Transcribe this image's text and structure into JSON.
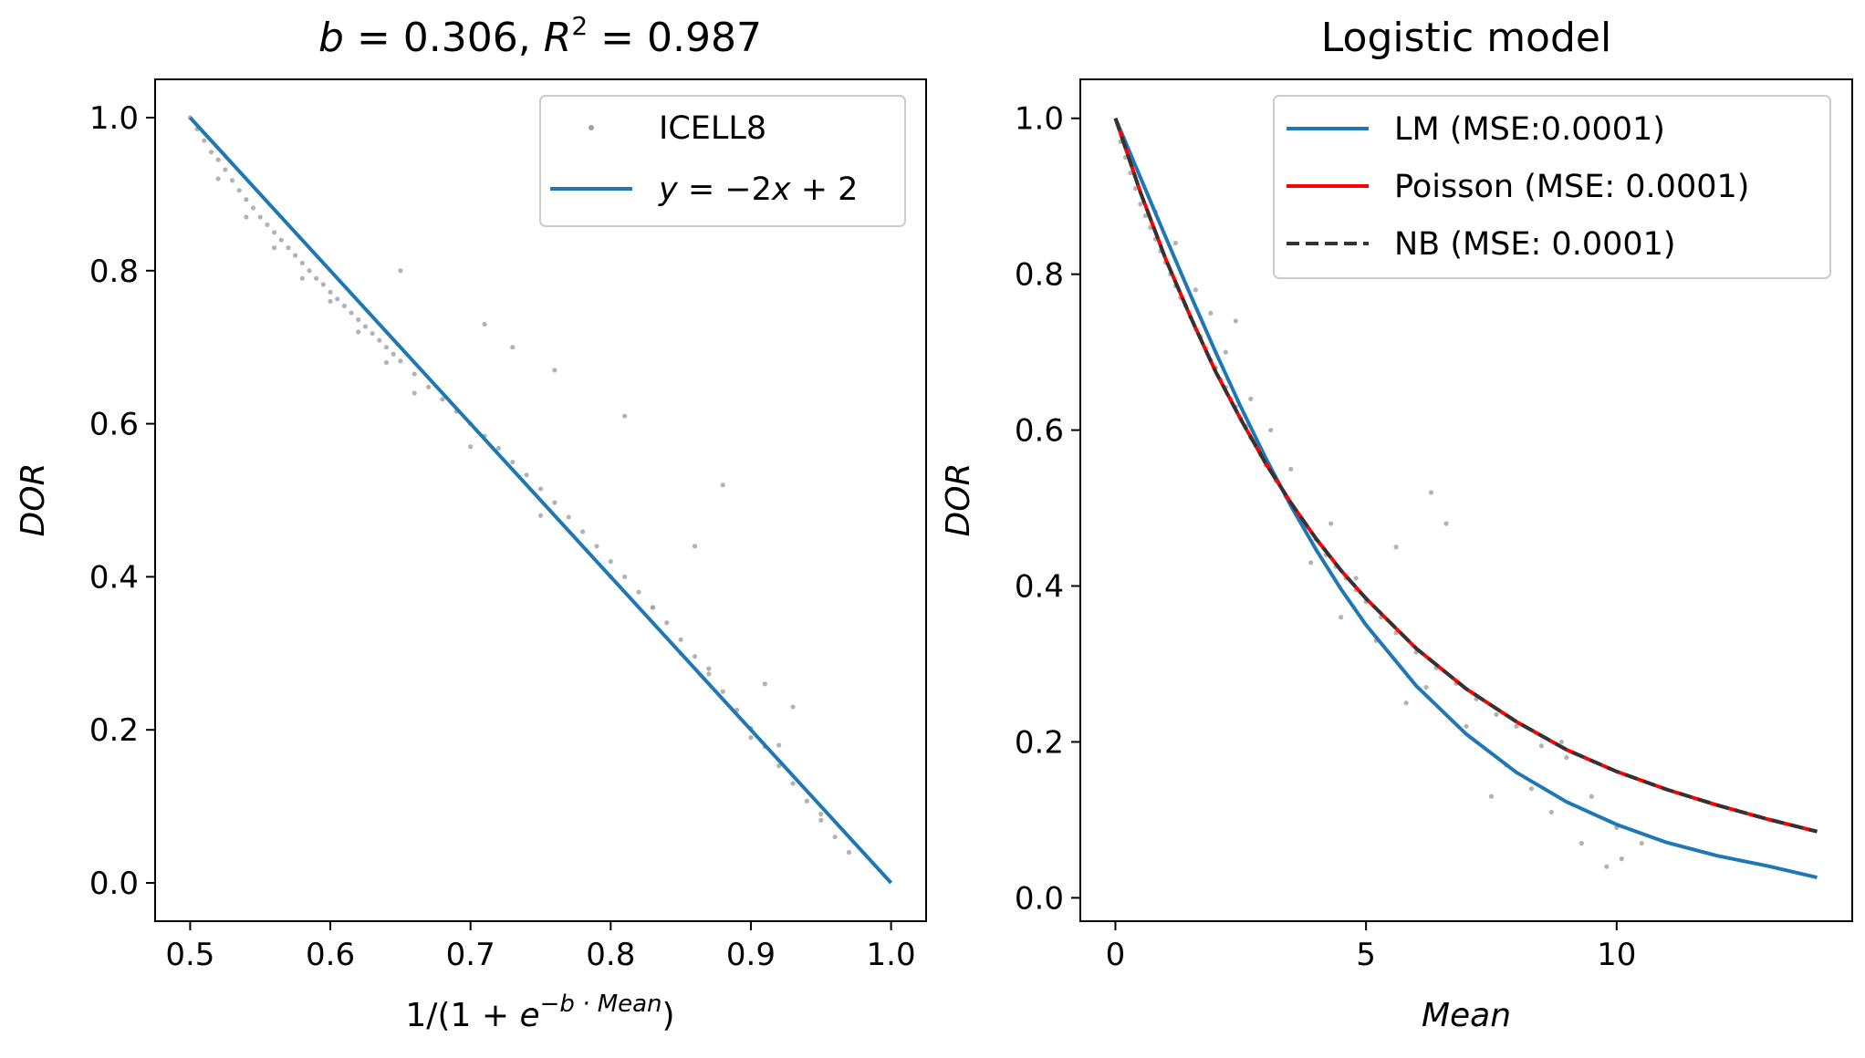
{
  "chart_data": [
    {
      "type": "scatter",
      "title_parts": [
        "b",
        " = 0.306,  ",
        "R",
        "2",
        " = 0.987"
      ],
      "xlabel_parts": [
        "1/(1 + ",
        "e",
        "−b · Mean",
        ")"
      ],
      "ylabel": "DOR",
      "xlim": [
        0.475,
        1.025
      ],
      "ylim": [
        -0.05,
        1.05
      ],
      "xticks": [
        0.5,
        0.6,
        0.7,
        0.8,
        0.9,
        1.0
      ],
      "xtick_labels": [
        "0.5",
        "0.6",
        "0.7",
        "0.8",
        "0.9",
        "1.0"
      ],
      "yticks": [
        0.0,
        0.2,
        0.4,
        0.6,
        0.8,
        1.0
      ],
      "ytick_labels": [
        "0.0",
        "0.2",
        "0.4",
        "0.6",
        "0.8",
        "1.0"
      ],
      "legend_position": "top-right",
      "b": 0.306,
      "colors": {
        "scatter": "#a0a0a0",
        "line": "#1f77b4"
      },
      "series": [
        {
          "name": "ICELL8",
          "kind": "scatter",
          "points": [
            [
              0.5,
              1.0
            ],
            [
              0.505,
              0.985
            ],
            [
              0.51,
              0.97
            ],
            [
              0.515,
              0.955
            ],
            [
              0.52,
              0.945
            ],
            [
              0.525,
              0.932
            ],
            [
              0.53,
              0.918
            ],
            [
              0.535,
              0.905
            ],
            [
              0.54,
              0.893
            ],
            [
              0.545,
              0.882
            ],
            [
              0.55,
              0.87
            ],
            [
              0.555,
              0.86
            ],
            [
              0.56,
              0.85
            ],
            [
              0.565,
              0.84
            ],
            [
              0.57,
              0.83
            ],
            [
              0.575,
              0.82
            ],
            [
              0.58,
              0.81
            ],
            [
              0.585,
              0.8
            ],
            [
              0.59,
              0.79
            ],
            [
              0.595,
              0.782
            ],
            [
              0.6,
              0.772
            ],
            [
              0.605,
              0.763
            ],
            [
              0.61,
              0.754
            ],
            [
              0.615,
              0.745
            ],
            [
              0.62,
              0.736
            ],
            [
              0.625,
              0.727
            ],
            [
              0.63,
              0.718
            ],
            [
              0.635,
              0.709
            ],
            [
              0.64,
              0.7
            ],
            [
              0.645,
              0.691
            ],
            [
              0.65,
              0.682
            ],
            [
              0.66,
              0.665
            ],
            [
              0.67,
              0.648
            ],
            [
              0.68,
              0.632
            ],
            [
              0.69,
              0.616
            ],
            [
              0.7,
              0.6
            ],
            [
              0.71,
              0.584
            ],
            [
              0.72,
              0.568
            ],
            [
              0.73,
              0.55
            ],
            [
              0.74,
              0.533
            ],
            [
              0.75,
              0.515
            ],
            [
              0.76,
              0.497
            ],
            [
              0.77,
              0.478
            ],
            [
              0.78,
              0.459
            ],
            [
              0.79,
              0.44
            ],
            [
              0.8,
              0.42
            ],
            [
              0.81,
              0.4
            ],
            [
              0.82,
              0.38
            ],
            [
              0.83,
              0.36
            ],
            [
              0.84,
              0.34
            ],
            [
              0.85,
              0.318
            ],
            [
              0.86,
              0.296
            ],
            [
              0.87,
              0.273
            ],
            [
              0.88,
              0.25
            ],
            [
              0.89,
              0.226
            ],
            [
              0.9,
              0.202
            ],
            [
              0.91,
              0.178
            ],
            [
              0.92,
              0.153
            ],
            [
              0.93,
              0.13
            ],
            [
              0.94,
              0.107
            ],
            [
              0.95,
              0.082
            ],
            [
              0.96,
              0.06
            ],
            [
              0.97,
              0.04
            ],
            [
              0.52,
              0.92
            ],
            [
              0.54,
              0.87
            ],
            [
              0.56,
              0.83
            ],
            [
              0.58,
              0.79
            ],
            [
              0.6,
              0.76
            ],
            [
              0.62,
              0.72
            ],
            [
              0.64,
              0.68
            ],
            [
              0.66,
              0.64
            ],
            [
              0.7,
              0.57
            ],
            [
              0.75,
              0.48
            ],
            [
              0.8,
              0.4
            ],
            [
              0.85,
              0.3
            ],
            [
              0.9,
              0.19
            ],
            [
              0.65,
              0.8
            ],
            [
              0.71,
              0.73
            ],
            [
              0.73,
              0.7
            ],
            [
              0.76,
              0.67
            ],
            [
              0.81,
              0.61
            ],
            [
              0.88,
              0.52
            ],
            [
              0.86,
              0.44
            ],
            [
              0.91,
              0.26
            ],
            [
              0.93,
              0.23
            ],
            [
              0.95,
              0.09
            ],
            [
              0.83,
              0.36
            ],
            [
              0.87,
              0.28
            ],
            [
              0.92,
              0.18
            ]
          ]
        },
        {
          "name_parts": [
            "y",
            " = −2",
            "x",
            " + 2"
          ],
          "kind": "line",
          "x": [
            0.5,
            1.0
          ],
          "y": [
            1.0,
            0.0
          ]
        }
      ]
    },
    {
      "type": "line",
      "title": "Logistic model",
      "xlabel": "Mean",
      "ylabel": "DOR",
      "xlim": [
        -0.7,
        14.7
      ],
      "ylim": [
        -0.03,
        1.05
      ],
      "xticks": [
        0,
        5,
        10
      ],
      "xtick_labels": [
        "0",
        "5",
        "10"
      ],
      "yticks": [
        0.0,
        0.2,
        0.4,
        0.6,
        0.8,
        1.0
      ],
      "ytick_labels": [
        "0.0",
        "0.2",
        "0.4",
        "0.6",
        "0.8",
        "1.0"
      ],
      "legend_position": "top-right",
      "colors": {
        "scatter": "#a0a0a0",
        "lm": "#1f77b4",
        "poisson": "#ff0000",
        "nb": "#333333"
      },
      "series": [
        {
          "name": "LM (MSE:0.0001)",
          "kind": "line",
          "x": [
            0,
            0.5,
            1,
            1.5,
            2,
            2.5,
            3,
            3.5,
            4,
            4.5,
            5,
            6,
            7,
            8,
            9,
            10,
            11,
            12,
            13,
            14
          ],
          "y": [
            1.0,
            0.924,
            0.848,
            0.773,
            0.7,
            0.63,
            0.564,
            0.503,
            0.447,
            0.396,
            0.35,
            0.272,
            0.21,
            0.161,
            0.123,
            0.094,
            0.071,
            0.054,
            0.041,
            0.026
          ]
        },
        {
          "name": "Poisson (MSE: 0.0001)",
          "kind": "line",
          "x": [
            0,
            0.5,
            1,
            1.5,
            2,
            2.5,
            3,
            3.5,
            4,
            4.5,
            5,
            6,
            7,
            8,
            9,
            10,
            11,
            12,
            13,
            14
          ],
          "y": [
            1.0,
            0.905,
            0.82,
            0.745,
            0.675,
            0.614,
            0.557,
            0.507,
            0.461,
            0.42,
            0.384,
            0.32,
            0.268,
            0.226,
            0.19,
            0.162,
            0.139,
            0.119,
            0.101,
            0.085
          ]
        },
        {
          "name": "NB (MSE: 0.0001)",
          "kind": "line",
          "x": [
            0,
            0.5,
            1,
            1.5,
            2,
            2.5,
            3,
            3.5,
            4,
            4.5,
            5,
            6,
            7,
            8,
            9,
            10,
            11,
            12,
            13,
            14
          ],
          "y": [
            1.0,
            0.905,
            0.82,
            0.745,
            0.675,
            0.614,
            0.557,
            0.507,
            0.461,
            0.42,
            0.384,
            0.32,
            0.268,
            0.226,
            0.19,
            0.162,
            0.139,
            0.119,
            0.101,
            0.085
          ]
        },
        {
          "kind": "scatter",
          "points": [
            [
              0.1,
              0.97
            ],
            [
              0.2,
              0.95
            ],
            [
              0.3,
              0.93
            ],
            [
              0.4,
              0.91
            ],
            [
              0.5,
              0.89
            ],
            [
              0.6,
              0.875
            ],
            [
              0.7,
              0.86
            ],
            [
              0.8,
              0.845
            ],
            [
              0.9,
              0.83
            ],
            [
              1.0,
              0.815
            ],
            [
              1.1,
              0.8
            ],
            [
              1.2,
              0.785
            ],
            [
              1.3,
              0.77
            ],
            [
              1.4,
              0.76
            ],
            [
              1.5,
              0.745
            ],
            [
              1.6,
              0.73
            ],
            [
              1.7,
              0.72
            ],
            [
              1.8,
              0.705
            ],
            [
              1.9,
              0.69
            ],
            [
              2.0,
              0.68
            ],
            [
              2.1,
              0.665
            ],
            [
              2.2,
              0.655
            ],
            [
              2.3,
              0.64
            ],
            [
              2.4,
              0.63
            ],
            [
              2.5,
              0.615
            ],
            [
              2.6,
              0.605
            ],
            [
              2.7,
              0.59
            ],
            [
              2.8,
              0.58
            ],
            [
              2.9,
              0.568
            ],
            [
              3.0,
              0.555
            ],
            [
              3.2,
              0.535
            ],
            [
              3.4,
              0.515
            ],
            [
              3.6,
              0.495
            ],
            [
              3.8,
              0.475
            ],
            [
              4.0,
              0.46
            ],
            [
              4.2,
              0.44
            ],
            [
              4.4,
              0.425
            ],
            [
              4.6,
              0.41
            ],
            [
              4.8,
              0.395
            ],
            [
              5.0,
              0.38
            ],
            [
              5.3,
              0.36
            ],
            [
              5.6,
              0.34
            ],
            [
              6.0,
              0.315
            ],
            [
              6.4,
              0.295
            ],
            [
              6.8,
              0.275
            ],
            [
              7.2,
              0.255
            ],
            [
              7.6,
              0.235
            ],
            [
              8.0,
              0.22
            ],
            [
              8.5,
              0.195
            ],
            [
              9.0,
              0.18
            ],
            [
              9.5,
              0.13
            ],
            [
              10.0,
              0.09
            ],
            [
              10.5,
              0.07
            ],
            [
              1.2,
              0.84
            ],
            [
              1.6,
              0.78
            ],
            [
              2.2,
              0.7
            ],
            [
              2.7,
              0.64
            ],
            [
              3.1,
              0.6
            ],
            [
              3.5,
              0.55
            ],
            [
              4.3,
              0.48
            ],
            [
              4.5,
              0.36
            ],
            [
              5.2,
              0.33
            ],
            [
              5.6,
              0.45
            ],
            [
              6.2,
              0.27
            ],
            [
              6.6,
              0.48
            ],
            [
              7.8,
              0.17
            ],
            [
              8.3,
              0.14
            ],
            [
              8.7,
              0.11
            ],
            [
              9.3,
              0.07
            ],
            [
              10.1,
              0.05
            ],
            [
              6.3,
              0.52
            ],
            [
              4.8,
              0.41
            ],
            [
              3.9,
              0.43
            ],
            [
              2.4,
              0.74
            ],
            [
              1.9,
              0.75
            ],
            [
              0.8,
              0.88
            ],
            [
              7.0,
              0.22
            ],
            [
              7.5,
              0.13
            ],
            [
              9.8,
              0.04
            ],
            [
              5.8,
              0.25
            ],
            [
              8.9,
              0.2
            ]
          ]
        }
      ]
    }
  ]
}
